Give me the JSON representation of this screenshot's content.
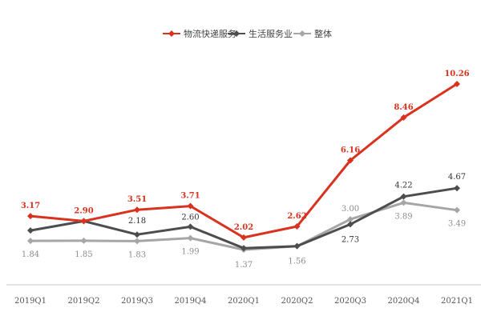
{
  "chart_data": {
    "type": "line",
    "title": "",
    "xlabel": "",
    "ylabel": "",
    "ylim": [
      0,
      11
    ],
    "grid": false,
    "legend_position": "top-center",
    "categories": [
      "2019Q1",
      "2019Q2",
      "2019Q3",
      "2019Q4",
      "2020Q1",
      "2020Q2",
      "2020Q3",
      "2020Q4",
      "2021Q1"
    ],
    "series": [
      {
        "name": "物流快递服务",
        "color": "#d9321f",
        "values": [
          3.17,
          2.9,
          3.51,
          3.71,
          2.02,
          2.62,
          6.16,
          8.46,
          10.26
        ],
        "labels": [
          "3.17",
          "2.90",
          "3.51",
          "3.71",
          "2.02",
          "2.62",
          "6.16",
          "8.46",
          "10.26"
        ],
        "label_visible": [
          true,
          true,
          true,
          true,
          true,
          true,
          true,
          true,
          true
        ]
      },
      {
        "name": "生活服务业",
        "color": "#4d4d4d",
        "values": [
          2.4,
          2.9,
          2.18,
          2.6,
          1.45,
          1.56,
          2.73,
          4.22,
          4.67
        ],
        "labels": [
          "",
          "",
          "2.18",
          "2.60",
          "",
          "",
          "2.73",
          "4.22",
          "4.67"
        ],
        "label_visible": [
          false,
          false,
          true,
          true,
          false,
          false,
          true,
          true,
          true
        ]
      },
      {
        "name": "整体",
        "color": "#a6a6a6",
        "values": [
          1.84,
          1.85,
          1.83,
          1.99,
          1.37,
          1.56,
          3.0,
          3.89,
          3.49
        ],
        "labels": [
          "1.84",
          "1.85",
          "1.83",
          "1.99",
          "1.37",
          "1.56",
          "3.00",
          "3.89",
          "3.49"
        ],
        "label_visible": [
          true,
          true,
          true,
          true,
          true,
          true,
          true,
          true,
          true
        ]
      }
    ]
  }
}
